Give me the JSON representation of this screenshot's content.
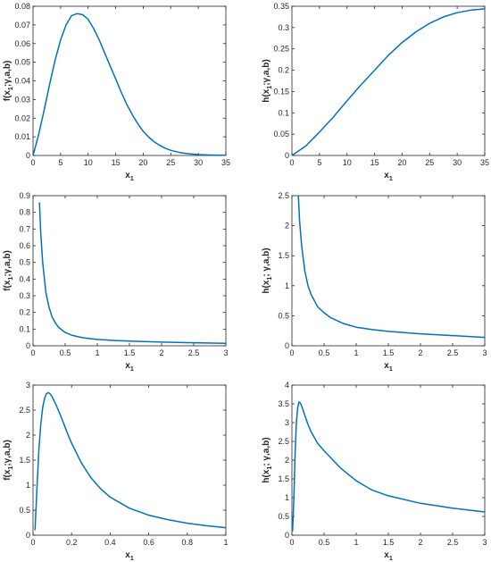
{
  "chart_data": [
    {
      "type": "line",
      "xlabel": "x",
      "xlabel_sub": "1",
      "ylabel": "f(x",
      "ylabel_sub": "1",
      "ylabel_tail": ";γ,a,b)",
      "xlim": [
        0,
        35
      ],
      "ylim": [
        0,
        0.08
      ],
      "xticks": [
        "0",
        "5",
        "10",
        "15",
        "20",
        "25",
        "30",
        "35"
      ],
      "yticks": [
        "0",
        "0.01",
        "0.02",
        "0.03",
        "0.04",
        "0.05",
        "0.06",
        "0.07",
        "0.08"
      ],
      "series": [
        {
          "color": "#0072BD",
          "x": [
            0,
            1,
            2,
            3,
            4,
            5,
            6,
            7,
            8,
            9,
            10,
            11,
            12,
            13,
            14,
            15,
            16,
            17,
            18,
            19,
            20,
            21,
            22,
            23,
            24,
            25,
            26,
            27,
            28,
            29,
            30,
            31,
            32,
            33,
            34,
            35
          ],
          "y": [
            0,
            0.011,
            0.024,
            0.038,
            0.051,
            0.062,
            0.07,
            0.075,
            0.076,
            0.0755,
            0.073,
            0.068,
            0.062,
            0.055,
            0.048,
            0.041,
            0.034,
            0.0275,
            0.022,
            0.017,
            0.013,
            0.0098,
            0.0073,
            0.0054,
            0.0039,
            0.0028,
            0.002,
            0.0014,
            0.001,
            0.0007,
            0.0005,
            0.00035,
            0.00025,
            0.00017,
            0.00012,
            8e-05
          ]
        }
      ]
    },
    {
      "type": "line",
      "xlabel": "x",
      "xlabel_sub": "1",
      "ylabel": "h(x",
      "ylabel_sub": "1",
      "ylabel_tail": ";γ,a,b)",
      "xlim": [
        0,
        35
      ],
      "ylim": [
        0,
        0.35
      ],
      "xticks": [
        "0",
        "5",
        "10",
        "15",
        "20",
        "25",
        "30",
        "35"
      ],
      "yticks": [
        "0",
        "0.05",
        "0.1",
        "0.15",
        "0.2",
        "0.25",
        "0.3",
        "0.35"
      ],
      "series": [
        {
          "color": "#0072BD",
          "x": [
            0,
            2.5,
            5,
            7.5,
            10,
            12.5,
            15,
            17.5,
            20,
            22.5,
            25,
            27.5,
            30,
            32.5,
            35
          ],
          "y": [
            0,
            0.022,
            0.055,
            0.09,
            0.128,
            0.165,
            0.2,
            0.235,
            0.265,
            0.29,
            0.31,
            0.325,
            0.335,
            0.341,
            0.344
          ]
        }
      ]
    },
    {
      "type": "line",
      "xlabel": "x",
      "xlabel_sub": "1",
      "ylabel": "f(x",
      "ylabel_sub": "1",
      "ylabel_tail": ";γ,a,b)",
      "xlim": [
        0,
        3
      ],
      "ylim": [
        0,
        0.9
      ],
      "xticks": [
        "0",
        "0.5",
        "1",
        "1.5",
        "2",
        "2.5",
        "3"
      ],
      "yticks": [
        "0",
        "0.1",
        "0.2",
        "0.3",
        "0.4",
        "0.5",
        "0.6",
        "0.7",
        "0.8",
        "0.9"
      ],
      "series": [
        {
          "color": "#0072BD",
          "x": [
            0.1,
            0.12,
            0.15,
            0.2,
            0.25,
            0.3,
            0.35,
            0.4,
            0.5,
            0.6,
            0.7,
            0.8,
            1.0,
            1.25,
            1.5,
            2.0,
            2.5,
            3.0
          ],
          "y": [
            0.86,
            0.68,
            0.5,
            0.32,
            0.23,
            0.17,
            0.135,
            0.11,
            0.08,
            0.064,
            0.054,
            0.047,
            0.038,
            0.032,
            0.028,
            0.022,
            0.018,
            0.015
          ]
        }
      ]
    },
    {
      "type": "line",
      "xlabel": "x",
      "xlabel_sub": "1",
      "ylabel": "h(x",
      "ylabel_sub": "1",
      "ylabel_tail": "; γ,a,b)",
      "xlim": [
        0,
        3
      ],
      "ylim": [
        0,
        2.5
      ],
      "xticks": [
        "0",
        "0.5",
        "1",
        "1.5",
        "2",
        "2.5",
        "3"
      ],
      "yticks": [
        "0",
        "0.5",
        "1",
        "1.5",
        "2",
        "2.5"
      ],
      "series": [
        {
          "color": "#0072BD",
          "x": [
            0.1,
            0.12,
            0.15,
            0.2,
            0.25,
            0.3,
            0.4,
            0.5,
            0.6,
            0.8,
            1.0,
            1.25,
            1.5,
            2.0,
            2.5,
            3.0
          ],
          "y": [
            2.5,
            2.08,
            1.68,
            1.25,
            1.0,
            0.85,
            0.65,
            0.55,
            0.47,
            0.37,
            0.31,
            0.27,
            0.24,
            0.2,
            0.17,
            0.14
          ]
        }
      ]
    },
    {
      "type": "line",
      "xlabel": "x",
      "xlabel_sub": "1",
      "ylabel": "f(x",
      "ylabel_sub": "1",
      "ylabel_tail": ";γ,a,b)",
      "xlim": [
        0,
        1
      ],
      "ylim": [
        0,
        3
      ],
      "xticks": [
        "0",
        "0.2",
        "0.4",
        "0.6",
        "0.8",
        "1"
      ],
      "yticks": [
        "0",
        "0.5",
        "1",
        "1.5",
        "2",
        "2.5",
        "3"
      ],
      "series": [
        {
          "color": "#0072BD",
          "x": [
            0.01,
            0.02,
            0.03,
            0.04,
            0.05,
            0.06,
            0.07,
            0.08,
            0.09,
            0.1,
            0.12,
            0.14,
            0.16,
            0.18,
            0.2,
            0.25,
            0.3,
            0.35,
            0.4,
            0.5,
            0.6,
            0.7,
            0.8,
            0.9,
            1.0
          ],
          "y": [
            0.1,
            0.9,
            1.7,
            2.2,
            2.55,
            2.74,
            2.83,
            2.85,
            2.82,
            2.76,
            2.6,
            2.42,
            2.22,
            2.02,
            1.84,
            1.45,
            1.15,
            0.93,
            0.76,
            0.54,
            0.4,
            0.31,
            0.24,
            0.19,
            0.15
          ]
        }
      ]
    },
    {
      "type": "line",
      "xlabel": "x",
      "xlabel_sub": "1",
      "ylabel": "h(x",
      "ylabel_sub": "1",
      "ylabel_tail": "; γ,a,b)",
      "xlim": [
        0,
        3
      ],
      "ylim": [
        0,
        4
      ],
      "xticks": [
        "0",
        "0.5",
        "1",
        "1.5",
        "2",
        "2.5",
        "3"
      ],
      "yticks": [
        "0",
        "0.5",
        "1",
        "1.5",
        "2",
        "2.5",
        "3",
        "3.5",
        "4"
      ],
      "series": [
        {
          "color": "#0072BD",
          "x": [
            0.01,
            0.03,
            0.05,
            0.07,
            0.09,
            0.11,
            0.13,
            0.15,
            0.2,
            0.25,
            0.3,
            0.4,
            0.5,
            0.75,
            1.0,
            1.25,
            1.5,
            2.0,
            2.5,
            3.0
          ],
          "y": [
            0.1,
            1.0,
            2.2,
            3.0,
            3.4,
            3.55,
            3.52,
            3.45,
            3.2,
            2.95,
            2.75,
            2.45,
            2.25,
            1.8,
            1.45,
            1.2,
            1.05,
            0.85,
            0.72,
            0.62
          ]
        }
      ]
    }
  ]
}
